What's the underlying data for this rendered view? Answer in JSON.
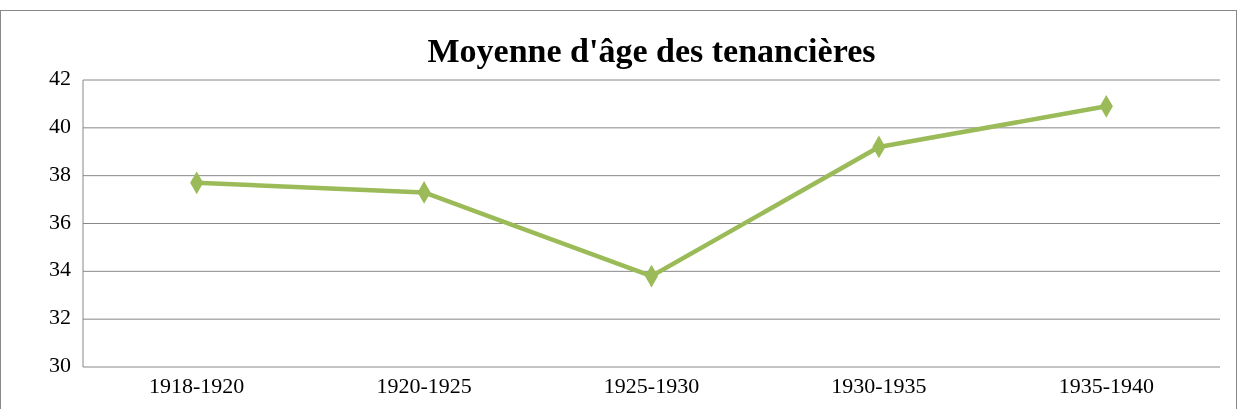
{
  "chart_data": {
    "type": "line",
    "title": "Moyenne d'âge des tenancières",
    "categories": [
      "1918-1920",
      "1920-1925",
      "1925-1930",
      "1930-1935",
      "1935-1940"
    ],
    "series": [
      {
        "color": "#9bbb59",
        "values": [
          37.7,
          37.3,
          33.8,
          39.2,
          40.9
        ]
      }
    ],
    "ylim": [
      30,
      42
    ],
    "yticks": [
      30,
      32,
      34,
      36,
      38,
      40,
      42
    ],
    "grid": "y",
    "marker": "diamond"
  }
}
